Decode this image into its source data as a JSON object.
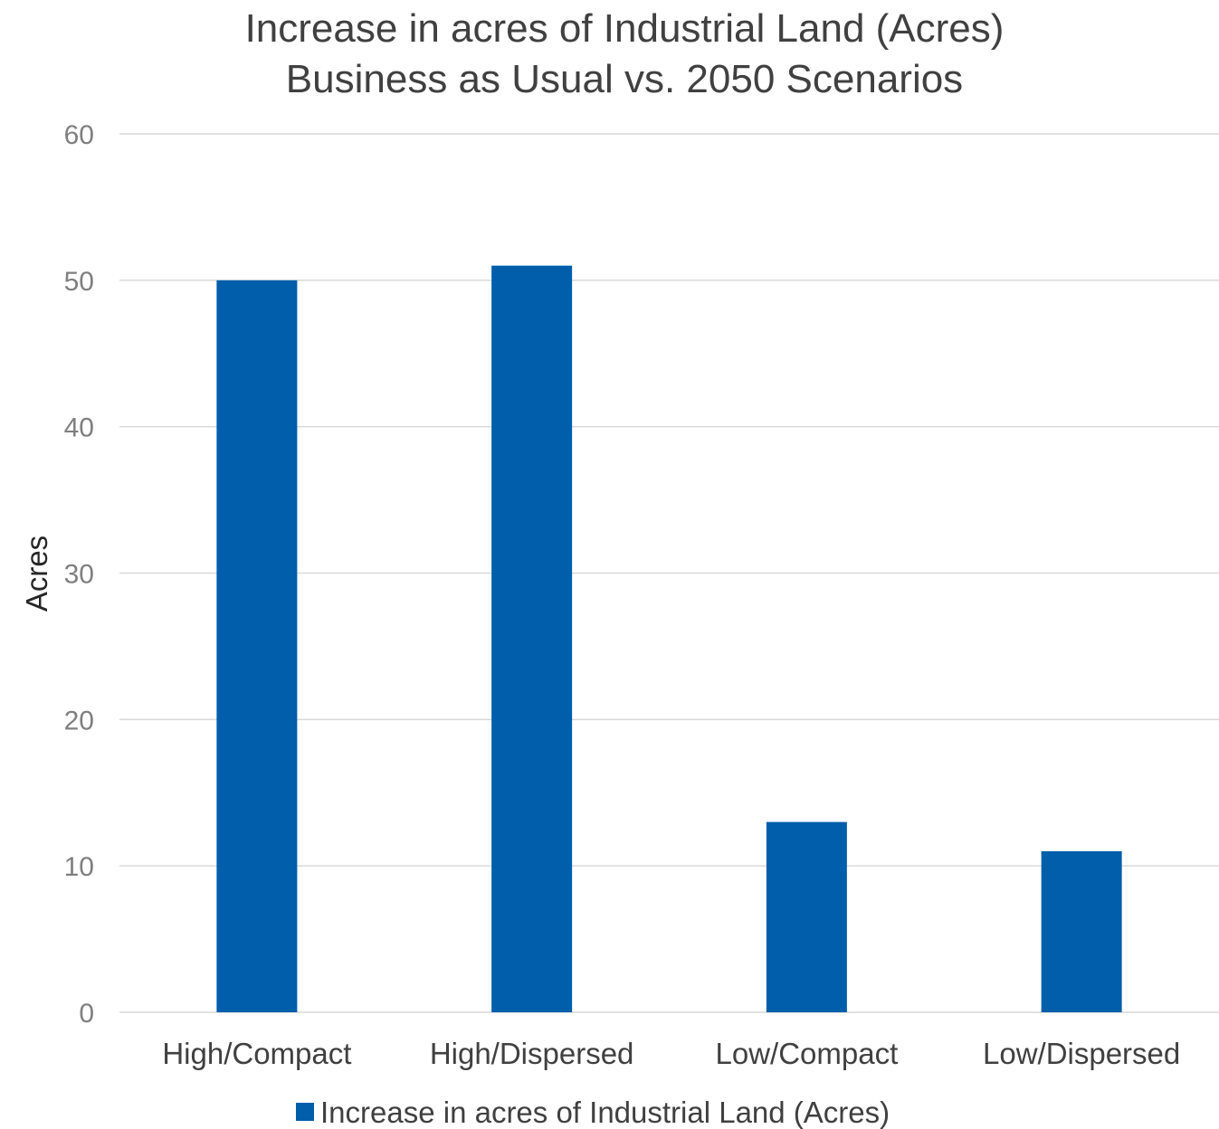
{
  "chart_data": {
    "type": "bar",
    "title": "Increase in acres of Industrial Land (Acres)",
    "subtitle": "Business as Usual vs. 2050 Scenarios",
    "xlabel": "",
    "ylabel": "Acres",
    "categories": [
      "High/Compact",
      "High/Dispersed",
      "Low/Compact",
      "Low/Dispersed"
    ],
    "series": [
      {
        "name": "Increase in acres of Industrial Land (Acres)",
        "values": [
          50,
          51,
          13,
          11
        ],
        "color": "#005eab"
      }
    ],
    "ylim": [
      0,
      60
    ],
    "yticks": [
      0,
      10,
      20,
      30,
      40,
      50,
      60
    ],
    "grid": true,
    "legend_position": "bottom"
  }
}
